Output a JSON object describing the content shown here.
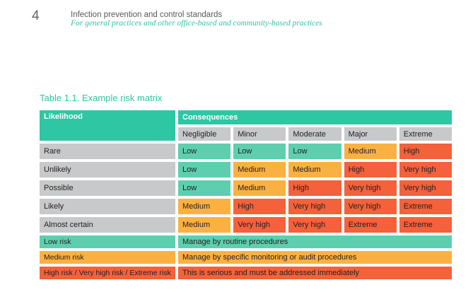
{
  "page": {
    "number": "4",
    "title": "Infection prevention and control standards",
    "subtitle": "For general practices and other office-based and community-based practices"
  },
  "table": {
    "title": "Table 1.1. Example risk matrix",
    "header": {
      "likelihood": "Likelihood",
      "consequences": "Consequences"
    },
    "consequence_levels": [
      "Negligible",
      "Minor",
      "Moderate",
      "Major",
      "Extreme"
    ],
    "rows": [
      {
        "label": "Rare",
        "cells": [
          {
            "label": "Low",
            "level": "low"
          },
          {
            "label": "Low",
            "level": "low"
          },
          {
            "label": "Low",
            "level": "low"
          },
          {
            "label": "Medium",
            "level": "medium"
          },
          {
            "label": "High",
            "level": "high"
          }
        ]
      },
      {
        "label": "Unlikely",
        "cells": [
          {
            "label": "Low",
            "level": "low"
          },
          {
            "label": "Medium",
            "level": "medium"
          },
          {
            "label": "Medium",
            "level": "medium"
          },
          {
            "label": "High",
            "level": "high"
          },
          {
            "label": "Very high",
            "level": "high"
          }
        ]
      },
      {
        "label": "Possible",
        "cells": [
          {
            "label": "Low",
            "level": "low"
          },
          {
            "label": "Medium",
            "level": "medium"
          },
          {
            "label": "High",
            "level": "high"
          },
          {
            "label": "Very high",
            "level": "high"
          },
          {
            "label": "Very high",
            "level": "high"
          }
        ]
      },
      {
        "label": "Likely",
        "cells": [
          {
            "label": "Medium",
            "level": "medium"
          },
          {
            "label": "High",
            "level": "high"
          },
          {
            "label": "Very high",
            "level": "high"
          },
          {
            "label": "Very high",
            "level": "high"
          },
          {
            "label": "Extreme",
            "level": "high"
          }
        ]
      },
      {
        "label": "Almost certain",
        "cells": [
          {
            "label": "Medium",
            "level": "medium"
          },
          {
            "label": "Very high",
            "level": "high"
          },
          {
            "label": "Very high",
            "level": "high"
          },
          {
            "label": "Extreme",
            "level": "high"
          },
          {
            "label": "Extreme",
            "level": "high"
          }
        ]
      }
    ],
    "legend": [
      {
        "label": "Low risk",
        "level": "low",
        "description": "Manage by routine procedures"
      },
      {
        "label": "Medium risk",
        "level": "medium",
        "description": "Manage by specific monitoring or audit procedures"
      },
      {
        "label": "High risk / Very high risk / Extreme risk",
        "level": "high",
        "description": "This is serious and must be addressed immediately"
      }
    ]
  },
  "colors": {
    "header": "#2EC6A3",
    "low": "#5DCFAE",
    "medium": "#FBB142",
    "high": "#F4613B",
    "gray": "#C8C9CA",
    "text_dark": "#231F20",
    "text_gray": "#58595B"
  }
}
